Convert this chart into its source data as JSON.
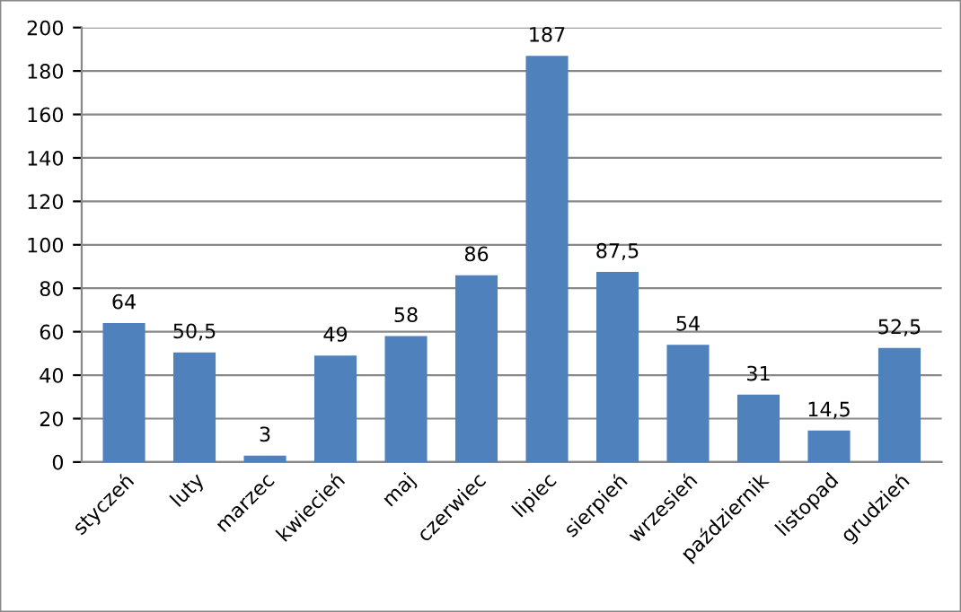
{
  "chart_data": {
    "type": "bar",
    "categories": [
      "styczeń",
      "luty",
      "marzec",
      "kwiecień",
      "maj",
      "czerwiec",
      "lipiec",
      "sierpień",
      "wrzesień",
      "październik",
      "listopad",
      "grudzień"
    ],
    "values": [
      64,
      50.5,
      3,
      49,
      58,
      86,
      187,
      87.5,
      54,
      31,
      14.5,
      52.5
    ],
    "value_labels": [
      "64",
      "50,5",
      "3",
      "49",
      "58",
      "86",
      "187",
      "87,5",
      "54",
      "31",
      "14,5",
      "52,5"
    ],
    "color": "#4f81bd",
    "ylim": [
      0,
      200
    ],
    "yticks": [
      0,
      20,
      40,
      60,
      80,
      100,
      120,
      140,
      160,
      180,
      200
    ],
    "grid": "y"
  }
}
